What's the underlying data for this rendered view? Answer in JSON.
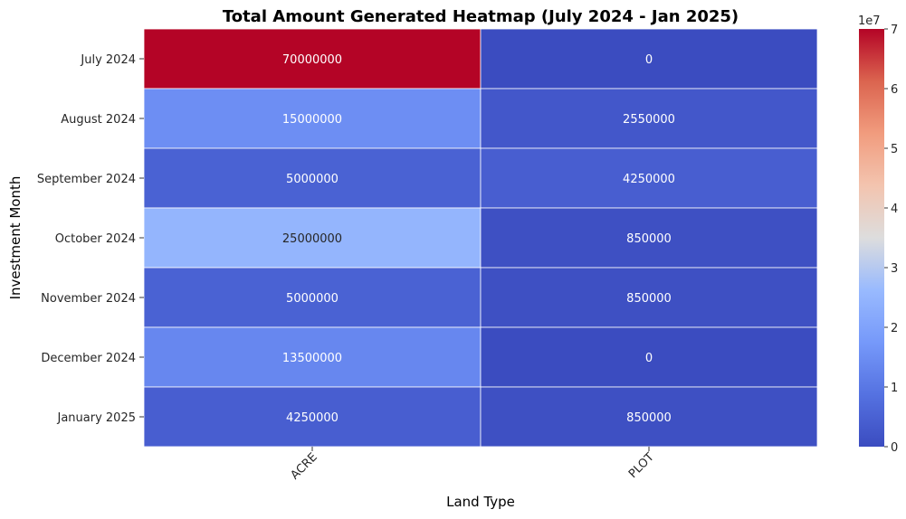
{
  "chart_data": {
    "type": "heatmap",
    "title": "Total Amount Generated Heatmap (July 2024 - Jan 2025)",
    "xlabel": "Land Type",
    "ylabel": "Investment Month",
    "x_categories": [
      "ACRE",
      "PLOT"
    ],
    "y_categories": [
      "July 2024",
      "August 2024",
      "September 2024",
      "October 2024",
      "November 2024",
      "December 2024",
      "January 2025"
    ],
    "values": [
      [
        70000000,
        0
      ],
      [
        15000000,
        2550000
      ],
      [
        5000000,
        4250000
      ],
      [
        25000000,
        850000
      ],
      [
        5000000,
        850000
      ],
      [
        13500000,
        0
      ],
      [
        4250000,
        850000
      ]
    ],
    "colormap": "coolwarm",
    "colorbar": {
      "range": [
        0,
        70000000
      ],
      "ticks": [
        0,
        1,
        2,
        3,
        4,
        5,
        6,
        7
      ],
      "tick_labels": [
        "0",
        "1",
        "2",
        "3",
        "4",
        "5",
        "6",
        "7"
      ],
      "offset_label": "1e7"
    },
    "annotations": true,
    "grid": false
  }
}
